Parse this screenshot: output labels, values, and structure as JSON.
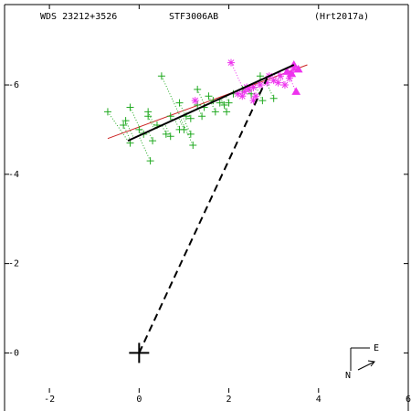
{
  "chart_data": {
    "type": "scatter",
    "title_left": "WDS 23212+3526",
    "title_center": "STF3006AB",
    "title_right": "(Hrt2017a)",
    "xlim": [
      -3,
      6
    ],
    "ylim": [
      -1.3,
      7.8
    ],
    "xticks": [
      -2,
      0,
      2,
      4,
      6
    ],
    "yticks": [
      0,
      2,
      4,
      6
    ],
    "xtick_labels": [
      "-2",
      "0",
      "2",
      "4",
      "6"
    ],
    "ytick_labels": [
      "-0",
      "-2",
      "-4",
      "-6"
    ],
    "compass": {
      "east": "E",
      "north": "N"
    },
    "colors": {
      "green": "#22aa22",
      "magenta": "#ee33ee",
      "orbit": "#000000",
      "fit": "#cc2222",
      "residual_green": "#22aa22",
      "residual_magenta": "#ee33ee"
    },
    "primary": {
      "x": 0,
      "y": 0
    },
    "dashed_line": {
      "from": [
        0,
        0
      ],
      "to": [
        2.85,
        6.15
      ]
    },
    "orbit_segment": {
      "from": [
        -0.25,
        4.75
      ],
      "to": [
        3.45,
        6.45
      ]
    },
    "fit_line": {
      "from": [
        -0.7,
        4.8
      ],
      "to": [
        3.75,
        6.45
      ]
    },
    "series": [
      {
        "marker": "plus",
        "color": "green",
        "points": [
          [
            0.5,
            6.2
          ],
          [
            -0.7,
            5.4
          ],
          [
            -0.3,
            5.2
          ],
          [
            -0.35,
            5.1
          ],
          [
            -0.2,
            5.5
          ],
          [
            0.2,
            5.4
          ],
          [
            0.0,
            5.0
          ],
          [
            0.1,
            4.9
          ],
          [
            0.3,
            4.75
          ],
          [
            -0.2,
            4.7
          ],
          [
            0.25,
            4.3
          ],
          [
            0.4,
            5.1
          ],
          [
            0.6,
            4.9
          ],
          [
            0.7,
            4.85
          ],
          [
            0.9,
            5.0
          ],
          [
            1.05,
            5.3
          ],
          [
            0.9,
            5.6
          ],
          [
            1.0,
            5.0
          ],
          [
            1.15,
            4.9
          ],
          [
            1.2,
            4.65
          ],
          [
            1.3,
            5.55
          ],
          [
            1.45,
            5.5
          ],
          [
            1.55,
            5.75
          ],
          [
            1.7,
            5.4
          ],
          [
            1.8,
            5.6
          ],
          [
            1.9,
            5.55
          ],
          [
            1.95,
            5.4
          ],
          [
            2.0,
            5.6
          ],
          [
            1.3,
            5.9
          ],
          [
            1.15,
            5.25
          ],
          [
            1.4,
            5.3
          ],
          [
            1.65,
            5.65
          ],
          [
            0.7,
            5.3
          ],
          [
            2.3,
            5.9
          ],
          [
            2.5,
            5.8
          ],
          [
            2.75,
            5.65
          ],
          [
            3.0,
            5.7
          ],
          [
            2.7,
            6.2
          ],
          [
            0.2,
            5.3
          ],
          [
            2.1,
            5.8
          ]
        ]
      },
      {
        "marker": "asterisk",
        "color": "magenta",
        "points": [
          [
            2.05,
            6.5
          ],
          [
            1.25,
            5.65
          ],
          [
            2.2,
            5.8
          ],
          [
            2.35,
            5.85
          ],
          [
            2.45,
            5.9
          ],
          [
            2.55,
            5.95
          ],
          [
            2.6,
            5.75
          ],
          [
            2.7,
            6.0
          ],
          [
            2.85,
            6.05
          ],
          [
            3.0,
            6.1
          ],
          [
            3.15,
            6.2
          ],
          [
            3.25,
            6.0
          ],
          [
            3.35,
            6.15
          ],
          [
            2.4,
            5.95
          ],
          [
            2.55,
            5.65
          ],
          [
            2.9,
            6.2
          ],
          [
            3.1,
            6.05
          ],
          [
            2.3,
            5.75
          ],
          [
            3.45,
            6.35
          ]
        ]
      },
      {
        "marker": "triangle",
        "color": "magenta",
        "points": [
          [
            3.45,
            6.45
          ],
          [
            3.55,
            6.35
          ],
          [
            3.3,
            6.3
          ],
          [
            3.5,
            5.85
          ],
          [
            3.4,
            6.25
          ]
        ]
      }
    ]
  }
}
